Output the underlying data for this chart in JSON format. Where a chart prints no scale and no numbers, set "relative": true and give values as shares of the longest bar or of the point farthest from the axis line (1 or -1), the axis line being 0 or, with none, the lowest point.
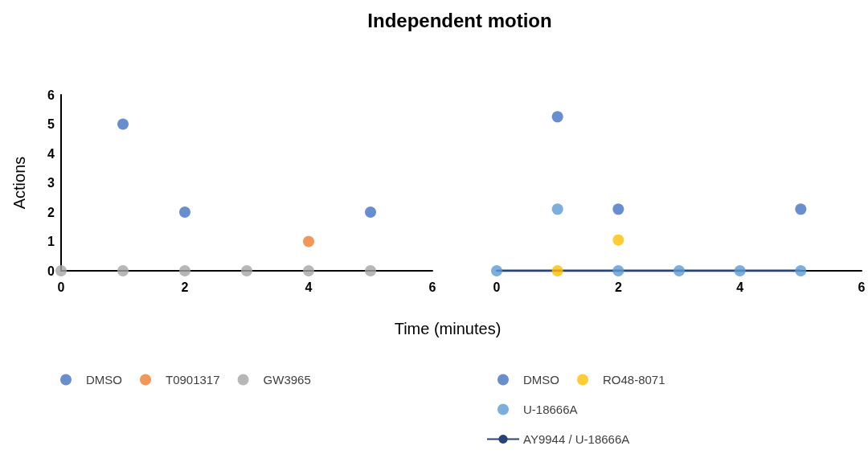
{
  "chart_data": [
    {
      "type": "scatter",
      "title": "Independent motion",
      "xlabel": "Time (minutes)",
      "ylabel": "Actions",
      "x": [
        0,
        1,
        2,
        3,
        4,
        5
      ],
      "xlim": [
        0,
        6
      ],
      "xticks": [
        0,
        2,
        4,
        6
      ],
      "ylim": [
        0,
        6
      ],
      "yticks": [
        0,
        1,
        2,
        3,
        4,
        5,
        6
      ],
      "grid": false,
      "legend": "bottom",
      "marker": "circle",
      "series": [
        {
          "name": "DMSO",
          "color": "#4472c4",
          "values": [
            null,
            5,
            2,
            null,
            null,
            2
          ]
        },
        {
          "name": "T0901317",
          "color": "#ed7d31",
          "values": [
            null,
            null,
            null,
            null,
            1,
            null
          ]
        },
        {
          "name": "GW3965",
          "color": "#a5a5a5",
          "values": [
            0,
            0,
            0,
            0,
            0,
            0
          ]
        }
      ]
    },
    {
      "type": "scatter",
      "relative": true,
      "tick_labels": "x",
      "x": [
        0,
        1,
        2,
        3,
        4,
        5
      ],
      "xlim": [
        0,
        6
      ],
      "xticks": [
        0,
        2,
        4,
        6
      ],
      "grid": false,
      "legend": "bottom",
      "marker": "circle",
      "series": [
        {
          "name": "DMSO",
          "color": "#4472c4",
          "values": [
            null,
            1,
            0.4,
            null,
            null,
            0.4
          ]
        },
        {
          "name": "RO48-8071",
          "color": "#ffc000",
          "values": [
            null,
            0,
            0.2,
            null,
            null,
            null
          ]
        },
        {
          "name": "U-18666A",
          "color": "#5b9bd5",
          "values": [
            0,
            0.4,
            0,
            0,
            0,
            0
          ]
        },
        {
          "name": "AY9944 / U-18666A",
          "type": "line",
          "marker": "none",
          "color": "#264478",
          "values": [
            0,
            0,
            0,
            0,
            0,
            0
          ]
        }
      ]
    }
  ]
}
